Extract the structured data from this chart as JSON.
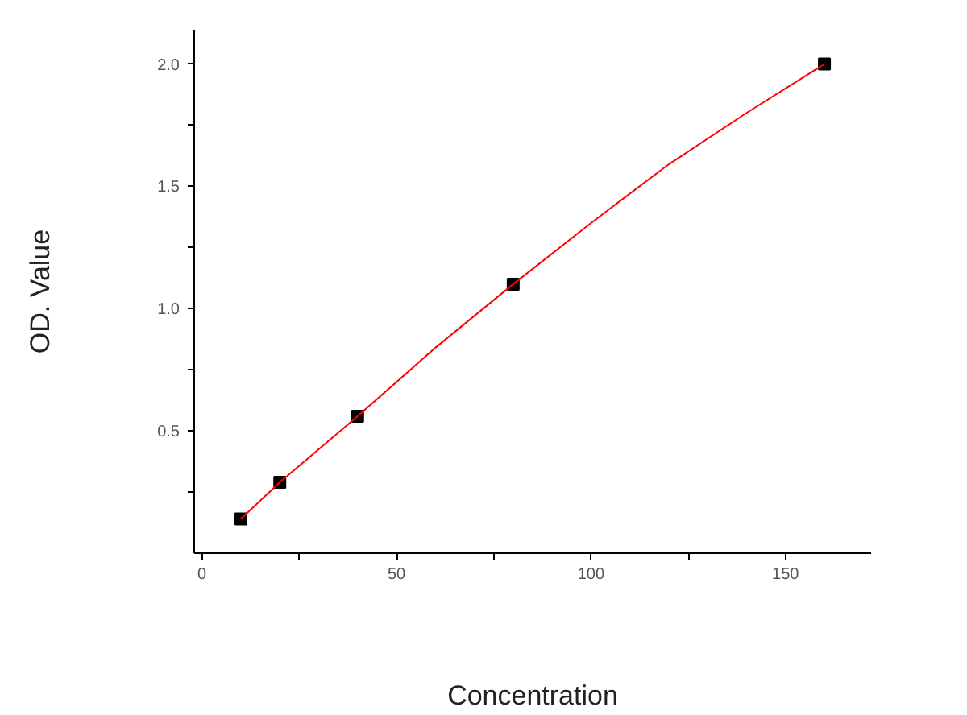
{
  "chart_data": {
    "type": "scatter",
    "xlabel": "Concentration",
    "ylabel": "OD. Value",
    "xlim": [
      -2,
      172
    ],
    "ylim": [
      0,
      2.14
    ],
    "xticks": [
      0,
      {
        "value": 25,
        "label": null
      },
      50,
      {
        "value": 75,
        "label": null
      },
      100,
      {
        "value": 125,
        "label": null
      },
      150
    ],
    "yticks": [
      {
        "value": 0.25,
        "label": null
      },
      {
        "value": 0.5,
        "label": "0.5"
      },
      {
        "value": 0.75,
        "label": null
      },
      {
        "value": 1,
        "label": "1.0"
      },
      {
        "value": 1.25,
        "label": null
      },
      {
        "value": 1.5,
        "label": "1.5"
      },
      {
        "value": 1.75,
        "label": null
      },
      {
        "value": 2,
        "label": "2.0"
      }
    ],
    "grid": false,
    "marker": "square",
    "series": [
      {
        "color": "#000000",
        "x": [
          10,
          20,
          40,
          80,
          160
        ],
        "values": [
          0.14,
          0.29,
          0.56,
          1.1,
          2.0
        ]
      },
      {
        "type": "line",
        "marker": "none",
        "color": "#ff0000",
        "x": [
          10,
          20,
          40,
          60,
          80,
          100,
          120,
          140,
          160
        ],
        "values": [
          0.14,
          0.29,
          0.56,
          0.84,
          1.1,
          1.35,
          1.59,
          1.8,
          2.0
        ]
      }
    ]
  }
}
